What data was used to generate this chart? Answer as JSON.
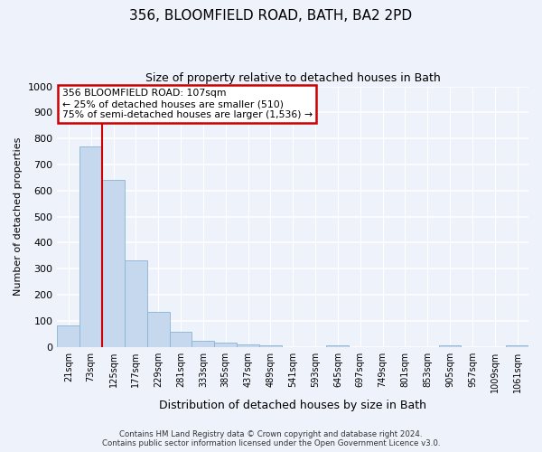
{
  "title": "356, BLOOMFIELD ROAD, BATH, BA2 2PD",
  "subtitle": "Size of property relative to detached houses in Bath",
  "xlabel": "Distribution of detached houses by size in Bath",
  "ylabel": "Number of detached properties",
  "bar_color": "#c5d8ed",
  "bar_edge_color": "#8ab4d4",
  "background_color": "#eef2fb",
  "grid_color": "#ffffff",
  "categories": [
    "21sqm",
    "73sqm",
    "125sqm",
    "177sqm",
    "229sqm",
    "281sqm",
    "333sqm",
    "385sqm",
    "437sqm",
    "489sqm",
    "541sqm",
    "593sqm",
    "645sqm",
    "697sqm",
    "749sqm",
    "801sqm",
    "853sqm",
    "905sqm",
    "957sqm",
    "1009sqm",
    "1061sqm"
  ],
  "values": [
    83,
    770,
    640,
    333,
    135,
    58,
    22,
    15,
    10,
    5,
    0,
    0,
    5,
    0,
    0,
    0,
    0,
    5,
    0,
    0,
    5
  ],
  "ylim": [
    0,
    1000
  ],
  "yticks": [
    0,
    100,
    200,
    300,
    400,
    500,
    600,
    700,
    800,
    900,
    1000
  ],
  "vline_x": 1.5,
  "vline_color": "#cc0000",
  "annotation_text": "356 BLOOMFIELD ROAD: 107sqm\n← 25% of detached houses are smaller (510)\n75% of semi-detached houses are larger (1,536) →",
  "annotation_box_color": "#ffffff",
  "annotation_box_edge": "#cc0000",
  "footer_line1": "Contains HM Land Registry data © Crown copyright and database right 2024.",
  "footer_line2": "Contains public sector information licensed under the Open Government Licence v3.0."
}
